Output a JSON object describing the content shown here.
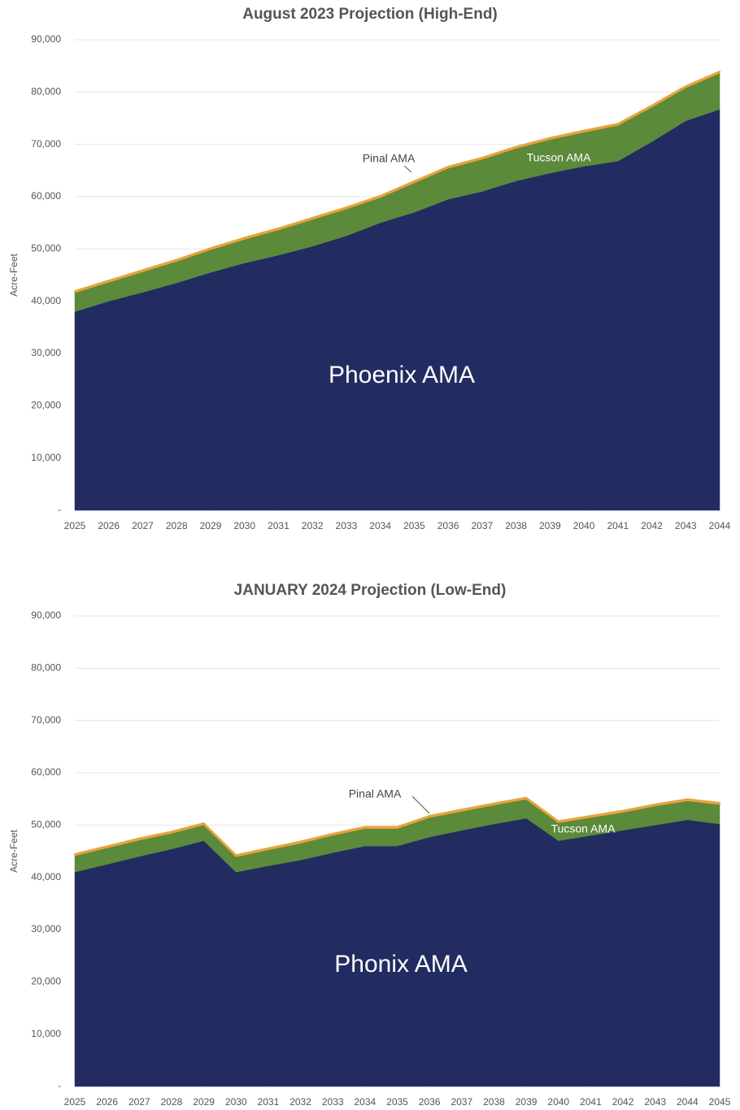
{
  "chart_data": [
    {
      "type": "area",
      "title": "August 2023 Projection (High-End)",
      "ylabel": "Acre-Feet",
      "x": [
        2025,
        2026,
        2027,
        2028,
        2029,
        2030,
        2031,
        2032,
        2033,
        2034,
        2035,
        2036,
        2037,
        2038,
        2039,
        2040,
        2041,
        2042,
        2043,
        2044
      ],
      "stacked": true,
      "grid": true,
      "ylim": [
        0,
        90000
      ],
      "yticks": [
        {
          "value": 0,
          "label": "-"
        },
        {
          "value": 10000,
          "label": "10,000"
        },
        {
          "value": 20000,
          "label": "20,000"
        },
        {
          "value": 30000,
          "label": "30,000"
        },
        {
          "value": 40000,
          "label": "40,000"
        },
        {
          "value": 50000,
          "label": "50,000"
        },
        {
          "value": 60000,
          "label": "60,000"
        },
        {
          "value": 70000,
          "label": "70,000"
        },
        {
          "value": 80000,
          "label": "80,000"
        },
        {
          "value": 90000,
          "label": "90,000"
        }
      ],
      "series": [
        {
          "name": "Phoenix AMA",
          "color": "#232c61",
          "values": [
            38000,
            40000,
            41700,
            43500,
            45500,
            47300,
            48800,
            50500,
            52500,
            55000,
            57000,
            59500,
            61000,
            63000,
            64500,
            65800,
            66800,
            70500,
            74500,
            76700
          ]
        },
        {
          "name": "Tucson AMA",
          "color": "#5b8a3a",
          "values": [
            3700,
            3700,
            4000,
            4200,
            4400,
            4600,
            4900,
            5200,
            5200,
            4900,
            5700,
            6000,
            6200,
            6300,
            6500,
            6600,
            6900,
            6700,
            6400,
            7000
          ]
        },
        {
          "name": "Pinal AMA",
          "color": "#e8a33a",
          "values": [
            300,
            300,
            300,
            300,
            300,
            300,
            300,
            300,
            300,
            300,
            300,
            300,
            300,
            300,
            300,
            300,
            300,
            300,
            300,
            300
          ]
        }
      ],
      "annotations": [
        "Phoenix AMA",
        "Tucson AMA",
        "Pinal AMA"
      ]
    },
    {
      "type": "area",
      "title": "JANUARY 2024 Projection (Low-End)",
      "ylabel": "Acre-Feet",
      "x": [
        2025,
        2026,
        2027,
        2028,
        2029,
        2030,
        2031,
        2032,
        2033,
        2034,
        2035,
        2036,
        2037,
        2038,
        2039,
        2040,
        2041,
        2042,
        2043,
        2044,
        2045
      ],
      "stacked": true,
      "grid": true,
      "ylim": [
        0,
        90000
      ],
      "yticks": [
        {
          "value": 0,
          "label": "-"
        },
        {
          "value": 10000,
          "label": "10,000"
        },
        {
          "value": 20000,
          "label": "20,000"
        },
        {
          "value": 30000,
          "label": "30,000"
        },
        {
          "value": 40000,
          "label": "40,000"
        },
        {
          "value": 50000,
          "label": "50,000"
        },
        {
          "value": 60000,
          "label": "60,000"
        },
        {
          "value": 70000,
          "label": "70,000"
        },
        {
          "value": 80000,
          "label": "80,000"
        },
        {
          "value": 90000,
          "label": "90,000"
        }
      ],
      "series": [
        {
          "name": "Phoenix AMA",
          "color": "#232c61",
          "values": [
            41000,
            42500,
            44000,
            45400,
            47000,
            41000,
            42200,
            43300,
            44700,
            46000,
            46000,
            47700,
            49000,
            50200,
            51300,
            47000,
            48000,
            49000,
            50000,
            51000,
            50200
          ]
        },
        {
          "name": "Tucson AMA",
          "color": "#5b8a3a",
          "values": [
            3200,
            3200,
            3200,
            3100,
            3100,
            3000,
            3100,
            3300,
            3400,
            3400,
            3400,
            3800,
            3700,
            3700,
            3700,
            3500,
            3500,
            3500,
            3700,
            3700,
            3800
          ]
        },
        {
          "name": "Pinal AMA",
          "color": "#e8a33a",
          "values": [
            300,
            300,
            300,
            300,
            300,
            300,
            300,
            300,
            300,
            300,
            300,
            300,
            300,
            300,
            300,
            300,
            300,
            300,
            300,
            300,
            300
          ]
        }
      ],
      "annotations": [
        "Phonix AMA",
        "Tucson AMA",
        "Pinal AMA"
      ]
    }
  ]
}
